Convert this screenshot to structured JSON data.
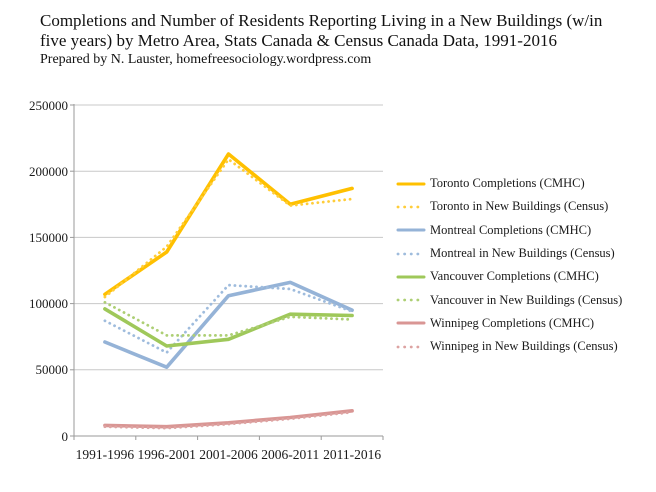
{
  "header": {
    "title_lines": [
      "Completions and Number of Residents Reporting Living in a New Buildings (w/in",
      "five years) by Metro Area, Stats Canada & Census Canada Data, 1991-2016"
    ],
    "subtitle": "Prepared by N. Lauster, homefreesociology.wordpress.com"
  },
  "chart_data": {
    "type": "line",
    "title": "Completions and Number of Residents Reporting Living in a New Buildings (w/in five years) by Metro Area, Stats Canada & Census Canada Data, 1991-2016",
    "subtitle": "Prepared by N. Lauster, homefreesociology.wordpress.com",
    "categories": [
      "1991-1996",
      "1996-2001",
      "2001-2006",
      "2006-2011",
      "2011-2016"
    ],
    "series": [
      {
        "name": "Toronto Completions (CMHC)",
        "values": [
          107000,
          139000,
          213000,
          175000,
          187000
        ],
        "color": "#FFC000",
        "style": "solid"
      },
      {
        "name": "Toronto in New Buildings (Census)",
        "values": [
          105000,
          143000,
          209000,
          174000,
          179000
        ],
        "color": "#FFCD39",
        "style": "dotted"
      },
      {
        "name": "Montreal Completions (CMHC)",
        "values": [
          71000,
          52000,
          106000,
          116000,
          95000
        ],
        "color": "#95B3D7",
        "style": "solid"
      },
      {
        "name": "Montreal in New Buildings (Census)",
        "values": [
          87000,
          63000,
          114000,
          111000,
          94000
        ],
        "color": "#9FBCDD",
        "style": "dotted"
      },
      {
        "name": "Vancouver Completions (CMHC)",
        "values": [
          96000,
          68000,
          73000,
          92000,
          91000
        ],
        "color": "#9FC85A",
        "style": "solid"
      },
      {
        "name": "Vancouver in New Buildings (Census)",
        "values": [
          101000,
          76000,
          76000,
          90000,
          88000
        ],
        "color": "#ADCF74",
        "style": "dotted"
      },
      {
        "name": "Winnipeg Completions (CMHC)",
        "values": [
          8000,
          7000,
          10000,
          14000,
          19000
        ],
        "color": "#D99694",
        "style": "solid"
      },
      {
        "name": "Winnipeg in New Buildings (Census)",
        "values": [
          7000,
          6000,
          9000,
          13000,
          18000
        ],
        "color": "#DDA3A2",
        "style": "dotted"
      }
    ],
    "ylim": [
      0,
      250000
    ],
    "ytick_step": 50000,
    "ytick_labels": [
      "0",
      "50000",
      "100000",
      "150000",
      "200000",
      "250000"
    ],
    "grid": true,
    "legend_position": "right",
    "colors": {
      "axis": "#9a9a9a",
      "grid": "#c8c8c8",
      "text": "#1a1a1a",
      "background": "#ffffff"
    }
  }
}
